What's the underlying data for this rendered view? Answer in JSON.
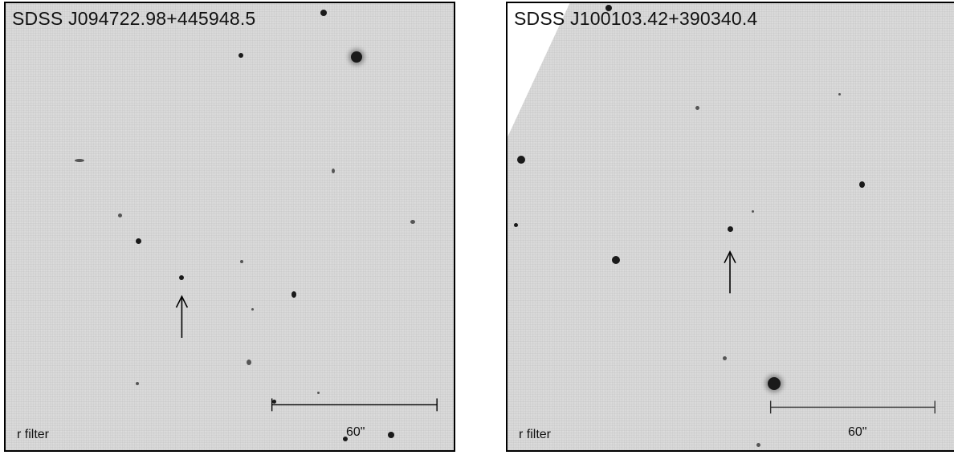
{
  "panels": [
    {
      "title": "SDSS J094722.98+445948.5",
      "filter_label": "r filter",
      "scale_label": "60\""
    },
    {
      "title": "SDSS J100103.42+390340.4",
      "filter_label": "r filter",
      "scale_label": "60\""
    }
  ]
}
